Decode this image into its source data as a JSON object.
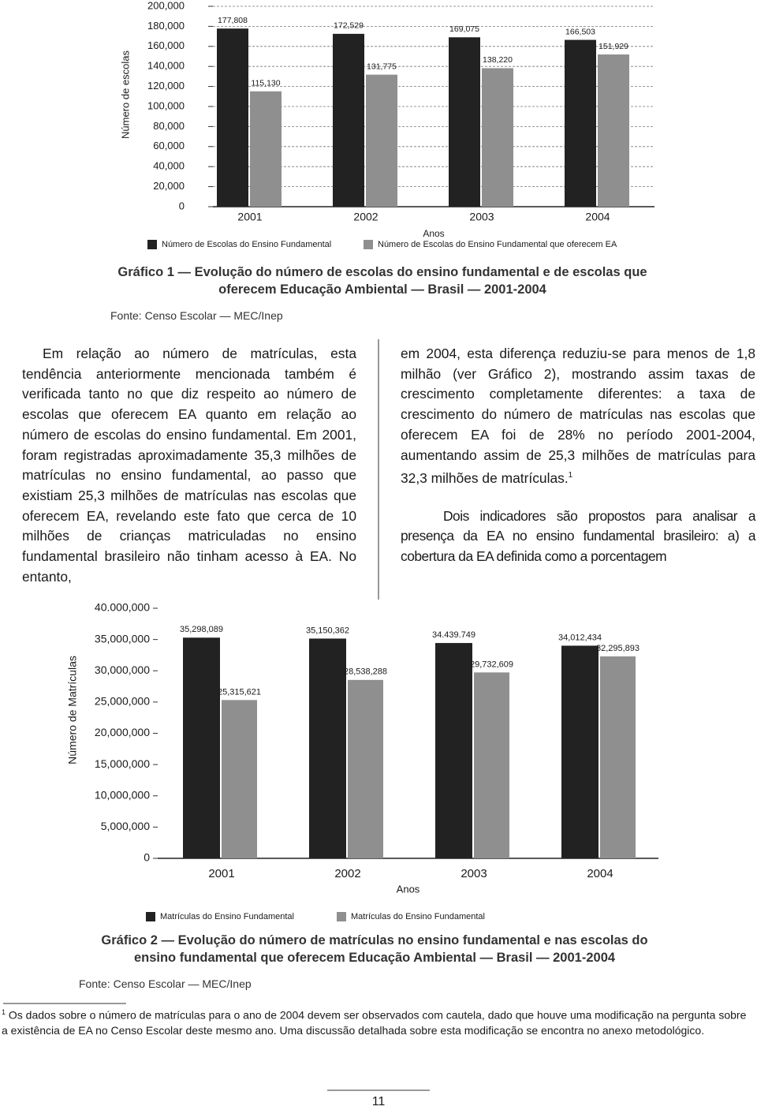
{
  "chart_data": [
    {
      "type": "bar",
      "title": "Gráfico 1 — Evolução do número de escolas do ensino fundamental e de escolas que oferecem Educação Ambiental — Brasil — 2001-2004",
      "source": "Fonte: Censo Escolar — MEC/Inep",
      "ylabel": "Número de escolas",
      "xlabel": "Anos",
      "categories": [
        "2001",
        "2002",
        "2003",
        "2004"
      ],
      "series": [
        {
          "name": "Número de Escolas do Ensino Fundamental",
          "color": "#222222",
          "values": [
            177808,
            172529,
            169075,
            166503
          ],
          "value_labels": [
            "177,808",
            "172,529",
            "169,075",
            "166,503"
          ]
        },
        {
          "name": "Número de Escolas do Ensino Fundamental que oferecem EA",
          "color": "#8f8f8f",
          "values": [
            115130,
            131775,
            138220,
            151929
          ],
          "value_labels": [
            "115,130",
            "131,775",
            "138,220",
            "151,929"
          ]
        }
      ],
      "ylim": [
        0,
        200000
      ],
      "yticks": [
        0,
        {
          "value": 20000,
          "label": "20,000"
        },
        {
          "value": 40000,
          "label": "40,000"
        },
        {
          "value": 60000,
          "label": "60,000"
        },
        {
          "value": 80000,
          "label": "80,000"
        },
        {
          "value": 100000,
          "label": "100,000"
        },
        {
          "value": 120000,
          "label": "120,000"
        },
        {
          "value": 140000,
          "label": "140,000"
        },
        {
          "value": 160000,
          "label": "160,000"
        },
        {
          "value": 180000,
          "label": "180,000"
        },
        {
          "value": 200000,
          "label": "200,000"
        }
      ],
      "grid": true
    },
    {
      "type": "bar",
      "title": "Gráfico 2 — Evolução do número de matrículas no ensino fundamental e nas escolas do ensino fundamental que oferecem Educação Ambiental — Brasil — 2001-2004",
      "source": "Fonte: Censo Escolar — MEC/Inep",
      "ylabel": "Número de Matrículas",
      "xlabel": "Anos",
      "categories": [
        "2001",
        "2002",
        "2003",
        "2004"
      ],
      "series": [
        {
          "name": "Matrículas do Ensino Fundamental",
          "color": "#222222",
          "values": [
            35298089,
            35150362,
            34439749,
            34012434
          ],
          "value_labels": [
            "35,298,089",
            "35,150,362",
            "34.439.749",
            "34,012,434"
          ]
        },
        {
          "name": "Matrículas do Ensino Fundamental",
          "color": "#8f8f8f",
          "values": [
            25315621,
            28538288,
            29732609,
            32295893
          ],
          "value_labels": [
            "25,315,621",
            "28,538,288",
            "29,732,609",
            "32,295,893"
          ]
        }
      ],
      "ylim": [
        0,
        40000000
      ],
      "yticks": [
        0,
        {
          "value": 5000000,
          "label": "5,000,000"
        },
        {
          "value": 10000000,
          "label": "10,000,000"
        },
        {
          "value": 15000000,
          "label": "15,000,000"
        },
        {
          "value": 20000000,
          "label": "20,000,000"
        },
        {
          "value": 25000000,
          "label": "25,000,000"
        },
        {
          "value": 30000000,
          "label": "30,000,000"
        },
        {
          "value": 35000000,
          "label": "35,000,000"
        },
        {
          "value": 40000000,
          "label": "40.000,000"
        }
      ],
      "grid": false
    }
  ],
  "text": {
    "left": "Em relação ao número de matrículas, esta tendência anteriormente mencionada também é verificada tanto no que diz respeito ao número de escolas que oferecem EA quanto em relação ao número de escolas do ensino fundamental. Em 2001, foram registradas aproximadamente 35,3 milhões de matrículas no ensino fundamental, ao passo que existiam 25,3 milhões de matrículas nas escolas que oferecem EA, revelando este fato que cerca de 10 milhões de crianças matriculadas no ensino fundamental brasileiro não tinham acesso à EA. No entanto,",
    "right": "em 2004, esta diferença reduziu-se para menos de 1,8 milhão (ver Gráfico 2), mostrando assim taxas de crescimento completamente diferentes: a taxa de crescimento do número de matrículas nas escolas que oferecem EA foi de 28% no período 2001-2004, aumentando assim de 25,3 milhões de matrículas para 32,3 milhões de matrículas.",
    "right_note": "1",
    "right2": "Dois indicadores são propostos para analisar a presença da EA no ensino fundamental brasileiro: a) a cobertura da EA definida como a porcentagem"
  },
  "footnote": {
    "marker": "1",
    "text": "Os dados sobre o número de matrículas para o ano de 2004 devem ser observados com cautela, dado que houve uma modificação na pergunta sobre a existência de EA no Censo Escolar deste mesmo ano. Uma discussão detalhada sobre esta modificação se encontra no anexo metodológico."
  },
  "page_number": "11"
}
